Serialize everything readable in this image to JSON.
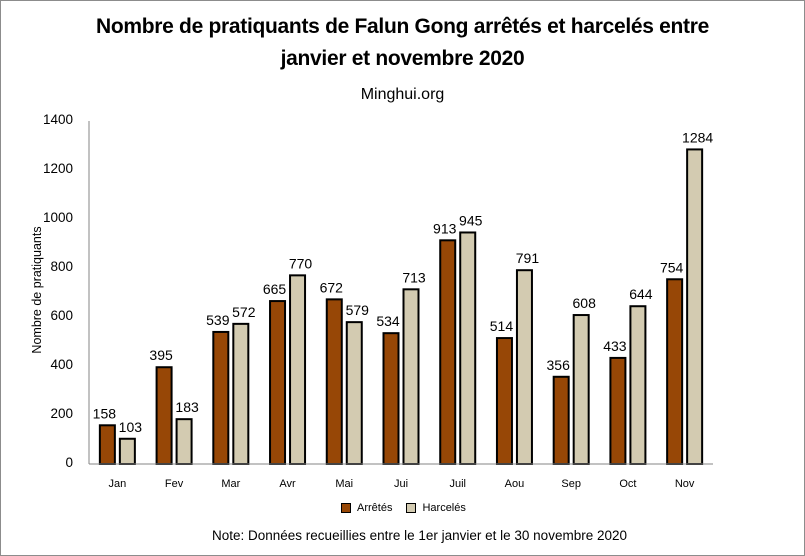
{
  "chart_data": {
    "type": "bar",
    "title": "Nombre de pratiquants de Falun Gong arrêtés et harcelés entre janvier et novembre 2020",
    "title_lines": [
      "Nombre de pratiquants de Falun Gong arrêtés et harcelés entre",
      "janvier et novembre 2020"
    ],
    "subtitle": "Minghui.org",
    "xlabel": "",
    "ylabel": "Nombre de pratiquants",
    "ylim": [
      0,
      1400
    ],
    "yticks": [
      0,
      200,
      400,
      600,
      800,
      1000,
      1200,
      1400
    ],
    "categories": [
      "Jan",
      "Fev",
      "Mar",
      "Avr",
      "Mai",
      "Jui",
      "Juil",
      "Aou",
      "Sep",
      "Oct",
      "Nov"
    ],
    "series": [
      {
        "name": "Arrêtés",
        "color": "#974706",
        "values": [
          158,
          395,
          539,
          665,
          672,
          534,
          913,
          514,
          356,
          433,
          754
        ]
      },
      {
        "name": "Harcelés",
        "color": "#D3CBB1",
        "values": [
          103,
          183,
          572,
          770,
          579,
          713,
          945,
          791,
          608,
          644,
          1284
        ]
      }
    ],
    "data_labels": true,
    "grid": false,
    "legend_position": "bottom",
    "annotation": "Note: Données recueillies entre le 1er janvier et le 30 novembre  2020"
  }
}
